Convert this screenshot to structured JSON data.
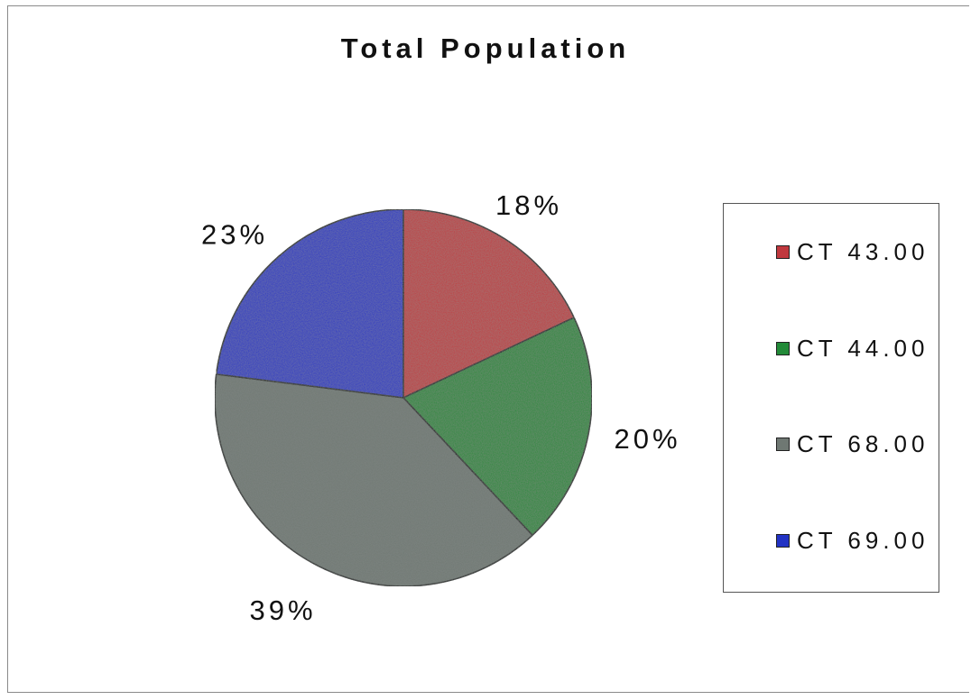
{
  "chart_data": {
    "type": "pie",
    "title": "Total Population",
    "series": [
      {
        "name": "Total Population",
        "values": [
          18,
          20,
          39,
          23
        ]
      }
    ],
    "categories": [
      "CT 43.00",
      "CT 44.00",
      "CT 68.00",
      "CT 69.00"
    ],
    "data_labels": [
      "18%",
      "20%",
      "39%",
      "23%"
    ],
    "colors": [
      "#c0383e",
      "#228a38",
      "#6f7873",
      "#2233c4"
    ],
    "legend_position": "right",
    "start_angle": "top, clockwise"
  }
}
